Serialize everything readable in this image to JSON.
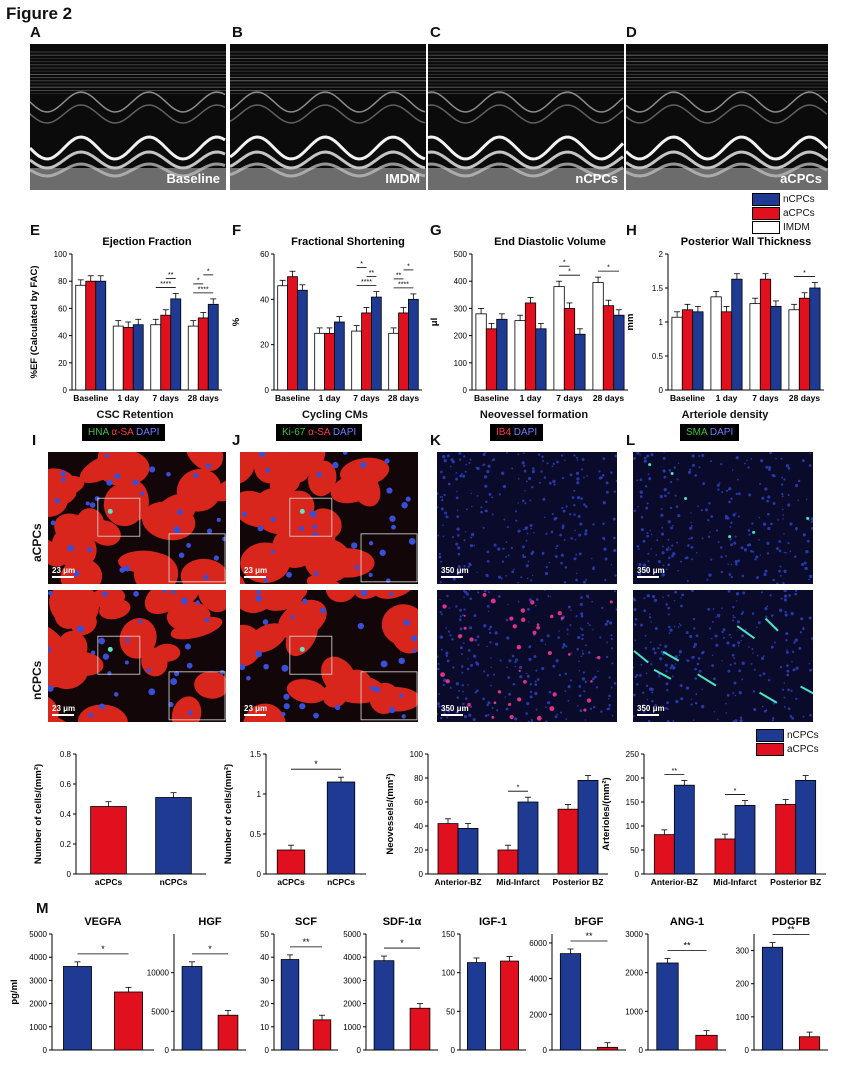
{
  "figure_title": "Figure 2",
  "colors": {
    "ncpc": "#1f3a93",
    "acpc": "#e0101e",
    "imdm": "#ffffff",
    "micro_red": "#d8261c",
    "micro_bg": "#0a0a2a"
  },
  "panels": {
    "A": "A",
    "B": "B",
    "C": "C",
    "D": "D",
    "E": "E",
    "F": "F",
    "G": "G",
    "H": "H",
    "I": "I",
    "J": "J",
    "K": "K",
    "L": "L",
    "M": "M"
  },
  "echo": [
    {
      "label": "Baseline"
    },
    {
      "label": "IMDM"
    },
    {
      "label": "nCPCs"
    },
    {
      "label": "aCPCs"
    }
  ],
  "legend_top": [
    "nCPCs",
    "aCPCs",
    "IMDM"
  ],
  "legend_mid": [
    "nCPCs",
    "aCPCs"
  ],
  "micro": {
    "titles": [
      "CSC Retention",
      "Cycling CMs",
      "Neovessel formation",
      "Arteriole density"
    ],
    "stains": [
      {
        "parts": [
          "HNA",
          " α-SA",
          " DAPI"
        ]
      },
      {
        "parts": [
          "Ki-67",
          " α-SA",
          " DAPI"
        ]
      },
      {
        "parts": [
          "IB4",
          " DAPI"
        ]
      },
      {
        "parts": [
          "SMA",
          " DAPI"
        ]
      }
    ],
    "row_labels": [
      "aCPCs",
      "nCPCs"
    ],
    "scales": [
      "23 μm",
      "23 μm",
      "350 μm",
      "350 μm"
    ]
  },
  "chart_data": [
    {
      "id": "E",
      "type": "bar",
      "title": "Ejection Fraction",
      "ylabel": "%EF (Calculated by FAC)",
      "ylim": [
        0,
        100
      ],
      "yticks": [
        0,
        20,
        40,
        60,
        80,
        100
      ],
      "categories": [
        "Baseline",
        "1 day",
        "7 days",
        "28 days"
      ],
      "series": [
        {
          "name": "IMDM",
          "values": [
            77,
            47,
            48,
            47
          ]
        },
        {
          "name": "aCPCs",
          "values": [
            80,
            46,
            55,
            53
          ]
        },
        {
          "name": "nCPCs",
          "values": [
            80,
            48,
            67,
            63
          ]
        }
      ],
      "sig": [
        {
          "cat": 2,
          "pairs": [
            [
              "0",
              "2",
              "****"
            ],
            [
              "1",
              "2",
              "**"
            ]
          ]
        },
        {
          "cat": 3,
          "pairs": [
            [
              "0",
              "2",
              "****"
            ],
            [
              "0",
              "1",
              "*"
            ],
            [
              "1",
              "2",
              "*"
            ]
          ]
        }
      ]
    },
    {
      "id": "F",
      "type": "bar",
      "title": "Fractional Shortening",
      "ylabel": "%",
      "ylim": [
        0,
        60
      ],
      "yticks": [
        0,
        20,
        40,
        60
      ],
      "categories": [
        "Baseline",
        "1 day",
        "7 days",
        "28 days"
      ],
      "series": [
        {
          "name": "IMDM",
          "values": [
            46,
            25,
            26,
            25
          ]
        },
        {
          "name": "aCPCs",
          "values": [
            50,
            25,
            34,
            34
          ]
        },
        {
          "name": "nCPCs",
          "values": [
            44,
            30,
            41,
            40
          ]
        }
      ],
      "sig": [
        {
          "cat": 2,
          "pairs": [
            [
              "0",
              "2",
              "****"
            ],
            [
              "1",
              "2",
              "**"
            ],
            [
              "0",
              "1",
              "*"
            ]
          ]
        },
        {
          "cat": 3,
          "pairs": [
            [
              "0",
              "2",
              "****"
            ],
            [
              "0",
              "1",
              "**"
            ],
            [
              "1",
              "2",
              "*"
            ]
          ]
        }
      ]
    },
    {
      "id": "G",
      "type": "bar",
      "title": "End Diastolic Volume",
      "ylabel": "μl",
      "ylim": [
        0,
        500
      ],
      "yticks": [
        0,
        100,
        200,
        300,
        400,
        500
      ],
      "categories": [
        "Baseline",
        "1 day",
        "7 days",
        "28 days"
      ],
      "series": [
        {
          "name": "IMDM",
          "values": [
            280,
            255,
            380,
            395
          ]
        },
        {
          "name": "aCPCs",
          "values": [
            225,
            320,
            300,
            310
          ]
        },
        {
          "name": "nCPCs",
          "values": [
            260,
            225,
            205,
            275
          ]
        }
      ],
      "sig": [
        {
          "cat": 2,
          "pairs": [
            [
              "0",
              "2",
              "*"
            ],
            [
              "0",
              "1",
              "*"
            ]
          ]
        },
        {
          "cat": 3,
          "pairs": [
            [
              "0",
              "2",
              "*"
            ]
          ]
        }
      ]
    },
    {
      "id": "H",
      "type": "bar",
      "title": "Posterior Wall Thickness",
      "ylabel": "mm",
      "ylim": [
        0,
        2.0
      ],
      "yticks": [
        0,
        0.5,
        1.0,
        1.5,
        2.0
      ],
      "categories": [
        "Baseline",
        "1 day",
        "7 days",
        "28 days"
      ],
      "series": [
        {
          "name": "IMDM",
          "values": [
            1.07,
            1.37,
            1.27,
            1.18
          ]
        },
        {
          "name": "aCPCs",
          "values": [
            1.18,
            1.15,
            1.63,
            1.35
          ]
        },
        {
          "name": "nCPCs",
          "values": [
            1.15,
            1.63,
            1.23,
            1.5
          ]
        }
      ],
      "sig": [
        {
          "cat": 3,
          "pairs": [
            [
              "0",
              "2",
              "*"
            ]
          ]
        }
      ]
    },
    {
      "id": "CR",
      "type": "bar",
      "ylabel": "Number of cells/(mm²)",
      "ylim": [
        0,
        0.8
      ],
      "yticks": [
        0,
        0.2,
        0.4,
        0.6,
        0.8
      ],
      "categories": [
        "aCPCs",
        "nCPCs"
      ],
      "series": [
        {
          "name": "",
          "values": [
            0.45,
            0.51
          ],
          "colors": [
            "acpc",
            "ncpc"
          ]
        }
      ],
      "sig": []
    },
    {
      "id": "CC",
      "type": "bar",
      "ylabel": "Number of cells/(mm²)",
      "ylim": [
        0,
        1.5
      ],
      "yticks": [
        0,
        0.5,
        1.0,
        1.5
      ],
      "categories": [
        "aCPCs",
        "nCPCs"
      ],
      "series": [
        {
          "name": "",
          "values": [
            0.3,
            1.15
          ],
          "colors": [
            "acpc",
            "ncpc"
          ]
        }
      ],
      "sig": [
        {
          "span": [
            0,
            1
          ],
          "text": "*"
        }
      ]
    },
    {
      "id": "NV",
      "type": "bar",
      "ylabel": "Neovessels/(mm²)",
      "ylim": [
        0,
        100
      ],
      "yticks": [
        0,
        20,
        40,
        60,
        80,
        100
      ],
      "categories": [
        "Anterior-BZ",
        "Mid-Infarct",
        "Posterior BZ"
      ],
      "series": [
        {
          "name": "aCPCs",
          "values": [
            42,
            20,
            54
          ]
        },
        {
          "name": "nCPCs",
          "values": [
            38,
            60,
            78
          ]
        }
      ],
      "sig": [
        {
          "cat": 1,
          "pairs": [
            [
              "0",
              "1",
              "*"
            ]
          ]
        }
      ]
    },
    {
      "id": "AR",
      "type": "bar",
      "ylabel": "Arterioles/(mm²)",
      "ylim": [
        0,
        250
      ],
      "yticks": [
        0,
        50,
        100,
        150,
        200,
        250
      ],
      "categories": [
        "Anterior-BZ",
        "Mid-Infarct",
        "Posterior BZ"
      ],
      "series": [
        {
          "name": "aCPCs",
          "values": [
            82,
            73,
            145
          ]
        },
        {
          "name": "nCPCs",
          "values": [
            185,
            143,
            195
          ]
        }
      ],
      "sig": [
        {
          "cat": 0,
          "pairs": [
            [
              "0",
              "1",
              "**"
            ]
          ]
        },
        {
          "cat": 1,
          "pairs": [
            [
              "0",
              "1",
              "*"
            ]
          ]
        }
      ]
    },
    {
      "id": "VEGFA",
      "type": "bar",
      "title": "VEGFA",
      "ylabel": "pg/ml",
      "ylim": [
        0,
        5000
      ],
      "yticks": [
        0,
        1000,
        2000,
        3000,
        4000,
        5000
      ],
      "categories": [
        "",
        ""
      ],
      "series": [
        {
          "name": "",
          "values": [
            3600,
            2500
          ],
          "colors": [
            "ncpc",
            "acpc"
          ]
        }
      ],
      "sig": [
        {
          "span": [
            0,
            1
          ],
          "text": "*"
        }
      ]
    },
    {
      "id": "HGF",
      "type": "bar",
      "title": "HGF",
      "ylim": [
        0,
        15000
      ],
      "yticks": [
        0,
        5000,
        10000
      ],
      "categories": [
        "",
        ""
      ],
      "series": [
        {
          "name": "",
          "values": [
            10800,
            4500
          ],
          "colors": [
            "ncpc",
            "acpc"
          ]
        }
      ],
      "sig": [
        {
          "span": [
            0,
            1
          ],
          "text": "*"
        }
      ]
    },
    {
      "id": "SCF",
      "type": "bar",
      "title": "SCF",
      "ylim": [
        0,
        50
      ],
      "yticks": [
        0,
        10,
        20,
        30,
        40,
        50
      ],
      "categories": [
        "",
        ""
      ],
      "series": [
        {
          "name": "",
          "values": [
            39,
            13
          ],
          "colors": [
            "ncpc",
            "acpc"
          ]
        }
      ],
      "sig": [
        {
          "span": [
            0,
            1
          ],
          "text": "**"
        }
      ]
    },
    {
      "id": "SDF",
      "type": "bar",
      "title": "SDF-1α",
      "ylim": [
        0,
        5000
      ],
      "yticks": [
        0,
        1000,
        2000,
        3000,
        4000,
        5000
      ],
      "categories": [
        "",
        ""
      ],
      "series": [
        {
          "name": "",
          "values": [
            3850,
            1800
          ],
          "colors": [
            "ncpc",
            "acpc"
          ]
        }
      ],
      "sig": [
        {
          "span": [
            0,
            1
          ],
          "text": "*"
        }
      ]
    },
    {
      "id": "IGF",
      "type": "bar",
      "title": "IGF-1",
      "ylim": [
        0,
        150
      ],
      "yticks": [
        0,
        50,
        100,
        150
      ],
      "categories": [
        "",
        ""
      ],
      "series": [
        {
          "name": "",
          "values": [
            113,
            115
          ],
          "colors": [
            "ncpc",
            "acpc"
          ]
        }
      ],
      "sig": []
    },
    {
      "id": "bFGF",
      "type": "bar",
      "title": "bFGF",
      "ylim": [
        0,
        6500
      ],
      "yticks": [
        0,
        2000,
        4000,
        6000
      ],
      "categories": [
        "",
        ""
      ],
      "series": [
        {
          "name": "",
          "values": [
            5400,
            150
          ],
          "colors": [
            "ncpc",
            "acpc"
          ]
        }
      ],
      "sig": [
        {
          "span": [
            0,
            1
          ],
          "text": "**"
        }
      ]
    },
    {
      "id": "ANG",
      "type": "bar",
      "title": "ANG-1",
      "ylim": [
        0,
        3000
      ],
      "yticks": [
        0,
        1000,
        2000,
        3000
      ],
      "categories": [
        "",
        ""
      ],
      "series": [
        {
          "name": "",
          "values": [
            2250,
            380
          ],
          "colors": [
            "ncpc",
            "acpc"
          ]
        }
      ],
      "sig": [
        {
          "span": [
            0,
            1
          ],
          "text": "**"
        }
      ]
    },
    {
      "id": "PDGFB",
      "type": "bar",
      "title": "PDGFB",
      "ylim": [
        0,
        350
      ],
      "yticks": [
        0,
        100,
        200,
        300
      ],
      "categories": [
        "",
        ""
      ],
      "series": [
        {
          "name": "",
          "values": [
            310,
            40
          ],
          "colors": [
            "ncpc",
            "acpc"
          ]
        }
      ],
      "sig": [
        {
          "span": [
            0,
            1
          ],
          "text": "**"
        }
      ]
    }
  ]
}
